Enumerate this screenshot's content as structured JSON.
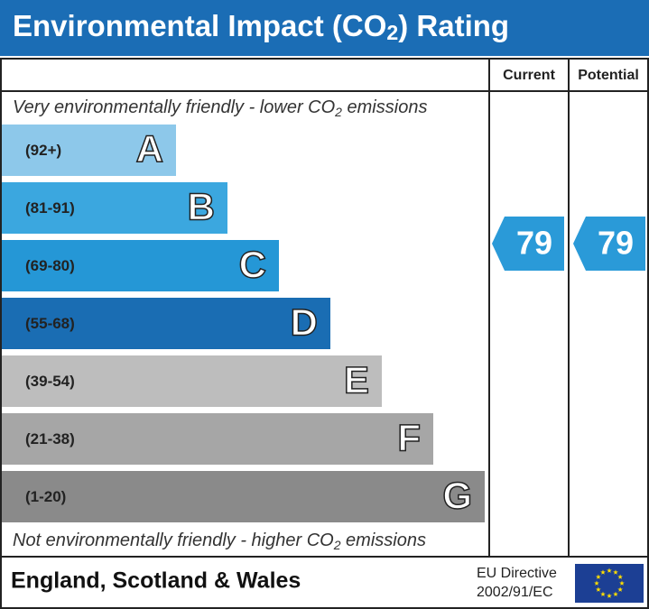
{
  "header": {
    "title": {
      "before": "Environmental Impact (CO",
      "sub": "2",
      "after": ") Rating"
    }
  },
  "columns": {
    "current": "Current",
    "potential": "Potential"
  },
  "top_note": {
    "before": "Very environmentally friendly - lower CO",
    "sub": "2",
    "after": " emissions"
  },
  "bottom_note": {
    "before": "Not environmentally friendly - higher CO",
    "sub": "2",
    "after": " emissions"
  },
  "bands": [
    {
      "range": "(92+)",
      "letter": "A",
      "color": "#8dc8ea"
    },
    {
      "range": "(81-91)",
      "letter": "B",
      "color": "#3ba7df"
    },
    {
      "range": "(69-80)",
      "letter": "C",
      "color": "#2597d6"
    },
    {
      "range": "(55-68)",
      "letter": "D",
      "color": "#1a6db3"
    },
    {
      "range": "(39-54)",
      "letter": "E",
      "color": "#bdbdbd"
    },
    {
      "range": "(21-38)",
      "letter": "F",
      "color": "#a6a6a6"
    },
    {
      "range": "(1-20)",
      "letter": "G",
      "color": "#8a8a8a"
    }
  ],
  "ratings": {
    "current": "79",
    "potential": "79",
    "color": "#2a9ad8"
  },
  "footer": {
    "region": "England, Scotland & Wales",
    "directive_line1": "EU Directive",
    "directive_line2": "2002/91/EC"
  }
}
